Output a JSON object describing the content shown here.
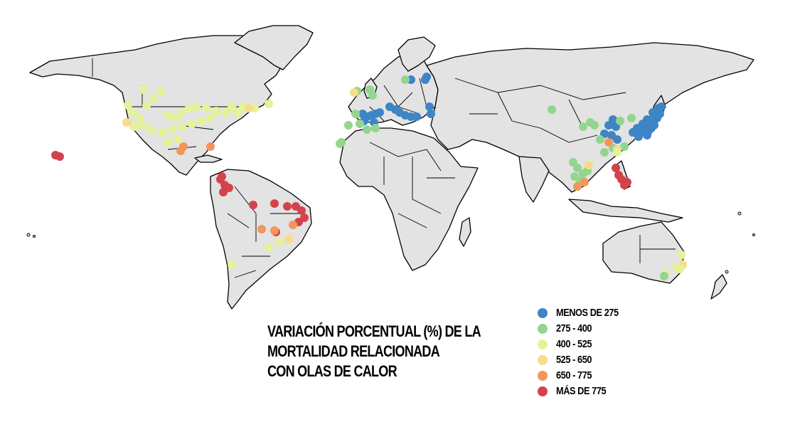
{
  "title_lines": [
    "VARIACIÓN PORCENTUAL (%) DE LA",
    "MORTALIDAD RELACIONADA",
    "CON OLAS DE CALOR"
  ],
  "legend": [
    {
      "label": "MENOS DE 275",
      "color": "#3d85c6"
    },
    {
      "label": "275 - 400",
      "color": "#93d58e"
    },
    {
      "label": "400 - 525",
      "color": "#e6f29a"
    },
    {
      "label": "525 - 650",
      "color": "#f9dc8a"
    },
    {
      "label": "650 - 775",
      "color": "#f3965a"
    },
    {
      "label": "MÁS DE 775",
      "color": "#d4434c"
    }
  ],
  "map_style": {
    "land": "#e3e3e3",
    "border": "#000000",
    "background": "#ffffff"
  },
  "site_groups": [
    {
      "region": "Japan",
      "category": "MENOS DE 275",
      "count": 22
    },
    {
      "region": "East China",
      "category": "MENOS DE 275",
      "count": 6
    },
    {
      "region": "Italy / Spain / Balkans",
      "category": "MENOS DE 275",
      "count": 16
    },
    {
      "region": "Baltic",
      "category": "MENOS DE 275",
      "count": 2
    },
    {
      "region": "Central China / Korea",
      "category": "275 - 400",
      "count": 10
    },
    {
      "region": "Indochina",
      "category": "275 - 400",
      "count": 7
    },
    {
      "region": "UK / Iberia",
      "category": "275 - 400",
      "count": 9
    },
    {
      "region": "North America",
      "category": "400 - 525",
      "count": 30
    },
    {
      "region": "Caribbean / Gulf",
      "category": "650 - 775",
      "count": 3
    },
    {
      "region": "Brazil",
      "category": "MÁS DE 775",
      "count": 8
    },
    {
      "region": "Colombia",
      "category": "MÁS DE 775",
      "count": 5
    },
    {
      "region": "Philippines",
      "category": "MÁS DE 775",
      "count": 5
    },
    {
      "region": "Australia",
      "category": "400 - 525",
      "count": 3
    }
  ]
}
